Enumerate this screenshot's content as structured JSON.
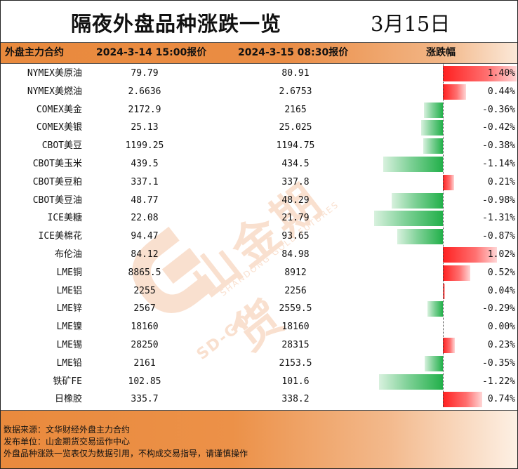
{
  "title": {
    "text": "隔夜外盘品种涨跌一览",
    "date": "3月15日"
  },
  "header": {
    "col_name": "外盘主力合约",
    "col_prev": "2024-3-14 15:00报价",
    "col_cur": "2024-3-15 08:30报价",
    "col_pct": "涨跌幅"
  },
  "colors": {
    "up": "#ff2020",
    "down": "#22b04a",
    "header_bg": "#e98a3d"
  },
  "watermark": {
    "brand_cn": "山金期货",
    "brand_en": "SHANDONG GOLD FUTURES",
    "logo_text": "SD-GOLD"
  },
  "chart_data": {
    "type": "table",
    "rows": [
      {
        "name": "NYMEX美原油",
        "prev": "79.79",
        "cur": "80.91",
        "pct": "1.40%",
        "value": 1.4
      },
      {
        "name": "NYMEX美燃油",
        "prev": "2.6636",
        "cur": "2.6753",
        "pct": "0.44%",
        "value": 0.44
      },
      {
        "name": "COMEX美金",
        "prev": "2172.9",
        "cur": "2165",
        "pct": "-0.36%",
        "value": -0.36
      },
      {
        "name": "COMEX美银",
        "prev": "25.13",
        "cur": "25.025",
        "pct": "-0.42%",
        "value": -0.42
      },
      {
        "name": "CBOT美豆",
        "prev": "1199.25",
        "cur": "1194.75",
        "pct": "-0.38%",
        "value": -0.38
      },
      {
        "name": "CBOT美玉米",
        "prev": "439.5",
        "cur": "434.5",
        "pct": "-1.14%",
        "value": -1.14
      },
      {
        "name": "CBOT美豆粕",
        "prev": "337.1",
        "cur": "337.8",
        "pct": "0.21%",
        "value": 0.21
      },
      {
        "name": "CBOT美豆油",
        "prev": "48.77",
        "cur": "48.29",
        "pct": "-0.98%",
        "value": -0.98
      },
      {
        "name": "ICE美糖",
        "prev": "22.08",
        "cur": "21.79",
        "pct": "-1.31%",
        "value": -1.31
      },
      {
        "name": "ICE美棉花",
        "prev": "94.47",
        "cur": "93.65",
        "pct": "-0.87%",
        "value": -0.87
      },
      {
        "name": "布伦油",
        "prev": "84.12",
        "cur": "84.98",
        "pct": "1.02%",
        "value": 1.02
      },
      {
        "name": "LME铜",
        "prev": "8865.5",
        "cur": "8912",
        "pct": "0.52%",
        "value": 0.52
      },
      {
        "name": "LME铝",
        "prev": "2255",
        "cur": "2256",
        "pct": "0.04%",
        "value": 0.04
      },
      {
        "name": "LME锌",
        "prev": "2567",
        "cur": "2559.5",
        "pct": "-0.29%",
        "value": -0.29
      },
      {
        "name": "LME镍",
        "prev": "18160",
        "cur": "18160",
        "pct": "0.00%",
        "value": 0.0
      },
      {
        "name": "LME锡",
        "prev": "28250",
        "cur": "28315",
        "pct": "0.23%",
        "value": 0.23
      },
      {
        "name": "LME铅",
        "prev": "2161",
        "cur": "2153.5",
        "pct": "-0.35%",
        "value": -0.35
      },
      {
        "name": "铁矿FE",
        "prev": "102.85",
        "cur": "101.6",
        "pct": "-1.22%",
        "value": -1.22
      },
      {
        "name": "日橡胶",
        "prev": "335.7",
        "cur": "338.2",
        "pct": "0.74%",
        "value": 0.74
      }
    ]
  },
  "footer": {
    "source": "数据来源：文华财经外盘主力合约",
    "publisher": "发布单位：山金期货交易运作中心",
    "disclaimer": "外盘品种涨跌一览表仅为数据引用，不构成交易指导，请谨慎操作"
  }
}
